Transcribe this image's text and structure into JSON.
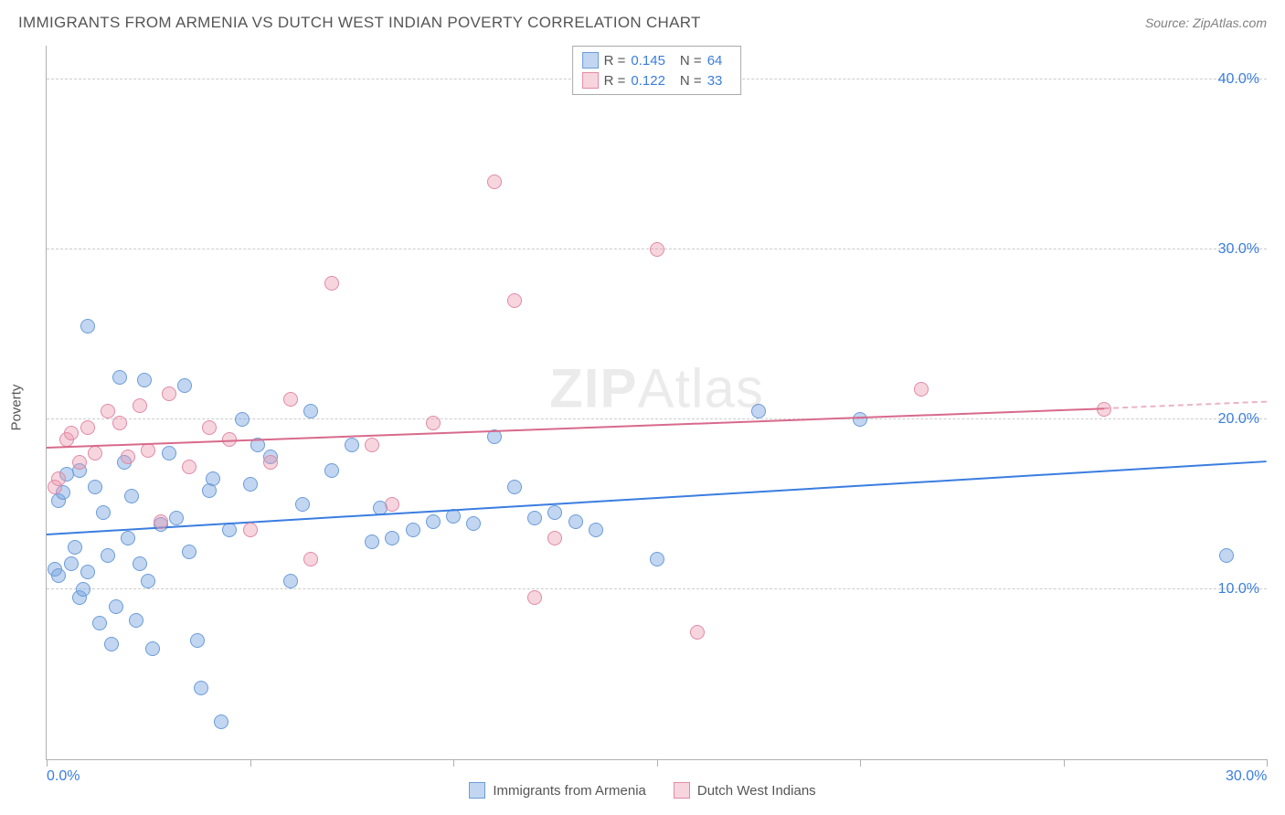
{
  "title": "IMMIGRANTS FROM ARMENIA VS DUTCH WEST INDIAN POVERTY CORRELATION CHART",
  "source": "Source: ZipAtlas.com",
  "watermark_bold": "ZIP",
  "watermark_light": "Atlas",
  "chart": {
    "type": "scatter",
    "xlim": [
      0,
      30
    ],
    "ylim": [
      0,
      42
    ],
    "y_gridlines": [
      10,
      20,
      30,
      40
    ],
    "y_tick_labels": [
      "10.0%",
      "20.0%",
      "30.0%",
      "40.0%"
    ],
    "x_ticks": [
      0,
      5,
      10,
      15,
      20,
      25,
      30
    ],
    "x_tick_labels": {
      "0": "0.0%",
      "30": "30.0%"
    },
    "ylabel": "Poverty",
    "grid_color": "#cccccc",
    "axis_color": "#b0b0b0",
    "tick_label_color": "#3a7de0",
    "background_color": "#ffffff",
    "series": [
      {
        "name": "Immigrants from Armenia",
        "fill": "rgba(120,165,225,0.45)",
        "stroke": "#6a9cd8",
        "line_color": "#3a7de0",
        "r_value": "0.145",
        "n_value": "64",
        "regression": {
          "x1": 0,
          "y1": 13.2,
          "x2": 30,
          "y2": 17.5,
          "dash_from": 30
        },
        "radius": 8,
        "points": [
          [
            0.2,
            11.2
          ],
          [
            0.3,
            10.8
          ],
          [
            0.3,
            15.2
          ],
          [
            0.4,
            15.7
          ],
          [
            0.5,
            16.8
          ],
          [
            0.6,
            11.5
          ],
          [
            0.7,
            12.5
          ],
          [
            0.8,
            17.0
          ],
          [
            0.8,
            9.5
          ],
          [
            0.9,
            10.0
          ],
          [
            1.0,
            25.5
          ],
          [
            1.0,
            11.0
          ],
          [
            1.2,
            16.0
          ],
          [
            1.3,
            8.0
          ],
          [
            1.4,
            14.5
          ],
          [
            1.5,
            12.0
          ],
          [
            1.6,
            6.8
          ],
          [
            1.7,
            9.0
          ],
          [
            1.8,
            22.5
          ],
          [
            1.9,
            17.5
          ],
          [
            2.0,
            13.0
          ],
          [
            2.1,
            15.5
          ],
          [
            2.2,
            8.2
          ],
          [
            2.3,
            11.5
          ],
          [
            2.4,
            22.3
          ],
          [
            2.5,
            10.5
          ],
          [
            2.6,
            6.5
          ],
          [
            2.8,
            13.8
          ],
          [
            3.0,
            18.0
          ],
          [
            3.2,
            14.2
          ],
          [
            3.4,
            22.0
          ],
          [
            3.5,
            12.2
          ],
          [
            3.7,
            7.0
          ],
          [
            3.8,
            4.2
          ],
          [
            4.0,
            15.8
          ],
          [
            4.1,
            16.5
          ],
          [
            4.3,
            2.2
          ],
          [
            4.5,
            13.5
          ],
          [
            4.8,
            20.0
          ],
          [
            5.0,
            16.2
          ],
          [
            5.2,
            18.5
          ],
          [
            5.5,
            17.8
          ],
          [
            6.0,
            10.5
          ],
          [
            6.3,
            15.0
          ],
          [
            6.5,
            20.5
          ],
          [
            7.0,
            17.0
          ],
          [
            7.5,
            18.5
          ],
          [
            8.0,
            12.8
          ],
          [
            8.2,
            14.8
          ],
          [
            8.5,
            13.0
          ],
          [
            9.0,
            13.5
          ],
          [
            9.5,
            14.0
          ],
          [
            10.0,
            14.3
          ],
          [
            10.5,
            13.9
          ],
          [
            11.0,
            19.0
          ],
          [
            11.5,
            16.0
          ],
          [
            12.0,
            14.2
          ],
          [
            12.5,
            14.5
          ],
          [
            13.0,
            14.0
          ],
          [
            13.5,
            13.5
          ],
          [
            15.0,
            11.8
          ],
          [
            17.5,
            20.5
          ],
          [
            20.0,
            20.0
          ],
          [
            29.0,
            12.0
          ]
        ]
      },
      {
        "name": "Dutch West Indians",
        "fill": "rgba(235,150,175,0.40)",
        "stroke": "#e08aa5",
        "line_color": "#d86a8c",
        "r_value": "0.122",
        "n_value": "33",
        "regression": {
          "x1": 0,
          "y1": 18.3,
          "x2": 26,
          "y2": 20.6,
          "dash_from": 26,
          "dash_x2": 30,
          "dash_y2": 21.0
        },
        "radius": 8,
        "points": [
          [
            0.2,
            16.0
          ],
          [
            0.3,
            16.5
          ],
          [
            0.5,
            18.8
          ],
          [
            0.6,
            19.2
          ],
          [
            0.8,
            17.5
          ],
          [
            1.0,
            19.5
          ],
          [
            1.2,
            18.0
          ],
          [
            1.5,
            20.5
          ],
          [
            1.8,
            19.8
          ],
          [
            2.0,
            17.8
          ],
          [
            2.3,
            20.8
          ],
          [
            2.5,
            18.2
          ],
          [
            2.8,
            14.0
          ],
          [
            3.0,
            21.5
          ],
          [
            3.5,
            17.2
          ],
          [
            4.0,
            19.5
          ],
          [
            4.5,
            18.8
          ],
          [
            5.0,
            13.5
          ],
          [
            5.5,
            17.5
          ],
          [
            6.0,
            21.2
          ],
          [
            6.5,
            11.8
          ],
          [
            7.0,
            28.0
          ],
          [
            8.0,
            18.5
          ],
          [
            8.5,
            15.0
          ],
          [
            9.5,
            19.8
          ],
          [
            11.0,
            34.0
          ],
          [
            11.5,
            27.0
          ],
          [
            12.0,
            9.5
          ],
          [
            12.5,
            13.0
          ],
          [
            15.0,
            30.0
          ],
          [
            16.0,
            7.5
          ],
          [
            21.5,
            21.8
          ],
          [
            26.0,
            20.6
          ]
        ]
      }
    ]
  },
  "legend_top": {
    "r_label": "R =",
    "n_label": "N ="
  },
  "bottom_legend": [
    {
      "label": "Immigrants from Armenia",
      "fill": "rgba(120,165,225,0.45)",
      "stroke": "#6a9cd8"
    },
    {
      "label": "Dutch West Indians",
      "fill": "rgba(235,150,175,0.40)",
      "stroke": "#e08aa5"
    }
  ]
}
